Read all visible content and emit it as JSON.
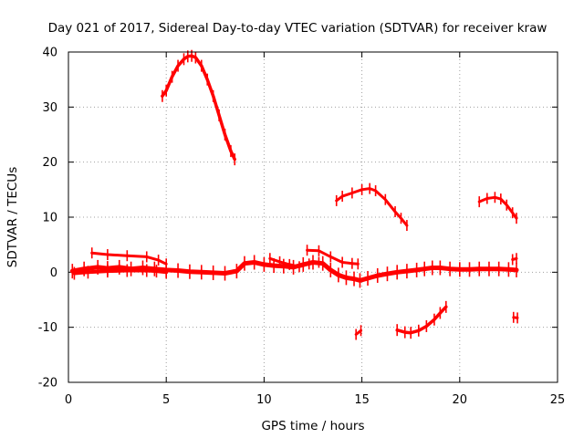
{
  "chart_data": {
    "type": "scatter",
    "title": "Day 021 of 2017, Sidereal Day-to-day VTEC variation (SDTVAR) for receiver kraw",
    "xlabel": "GPS time / hours",
    "ylabel": "SDTVAR / TECUs",
    "xlim": [
      0,
      25
    ],
    "ylim": [
      -20,
      40
    ],
    "xticks": [
      0,
      5,
      10,
      15,
      20,
      25
    ],
    "yticks": [
      -20,
      -10,
      0,
      10,
      20,
      30,
      40
    ],
    "grid": true,
    "marker_color": "#ff0000",
    "series": [
      {
        "name": "arc-peak-morning",
        "thickness": 3.5,
        "x": [
          4.8,
          5.0,
          5.3,
          5.6,
          5.9,
          6.1,
          6.3,
          6.5,
          6.8,
          7.1,
          7.4,
          7.7,
          8.0,
          8.3,
          8.5
        ],
        "y": [
          32,
          33,
          35.5,
          37.5,
          38.7,
          39.2,
          39.3,
          39.0,
          37.5,
          35,
          32,
          28.5,
          25,
          22,
          20.5
        ]
      },
      {
        "name": "arc-midday",
        "thickness": 3,
        "x": [
          13.7,
          14.0,
          14.5,
          15.0,
          15.4,
          15.7,
          16.2,
          16.7,
          17.0,
          17.3
        ],
        "y": [
          13,
          13.8,
          14.4,
          15,
          15.2,
          14.8,
          13.2,
          11,
          9.8,
          8.5
        ]
      },
      {
        "name": "arc-evening",
        "thickness": 3,
        "x": [
          21.0,
          21.4,
          21.8,
          22.1,
          22.4,
          22.7,
          22.9
        ],
        "y": [
          12.8,
          13.4,
          13.6,
          13.3,
          12.2,
          10.8,
          9.8
        ]
      },
      {
        "name": "band-upper",
        "thickness": 3,
        "x": [
          1.2,
          2.0,
          3.0,
          4.0,
          4.6,
          5.0
        ],
        "y": [
          3.5,
          3.2,
          3.0,
          2.8,
          2.2,
          1.5
        ]
      },
      {
        "name": "band-upper-midday",
        "thickness": 3,
        "x": [
          12.2,
          12.8,
          13.4,
          14.0,
          14.5,
          14.8
        ],
        "y": [
          4.0,
          3.9,
          2.8,
          1.8,
          1.6,
          1.5
        ]
      },
      {
        "name": "band-main",
        "thickness": 5,
        "x": [
          0.2,
          0.8,
          1.5,
          2.0,
          2.6,
          3.2,
          3.8,
          4.4,
          5.0,
          5.6,
          6.2,
          6.8,
          7.4,
          8.0,
          8.6,
          9.0,
          9.5,
          10.0,
          10.5,
          11.0,
          11.5,
          12.0,
          12.5,
          13.0,
          13.4,
          13.8,
          14.2,
          14.6,
          14.9,
          15.3,
          15.8,
          16.3,
          16.8,
          17.3,
          17.8,
          18.2,
          18.6,
          19.0,
          19.5,
          20.0,
          20.5,
          21.0,
          21.5,
          22.0,
          22.5,
          22.9
        ],
        "y": [
          0.2,
          0.6,
          0.9,
          0.7,
          0.9,
          0.6,
          0.8,
          0.6,
          0.4,
          0.3,
          0.1,
          0.0,
          -0.1,
          -0.2,
          0.2,
          1.6,
          1.8,
          1.4,
          1.2,
          1.1,
          0.9,
          1.4,
          1.8,
          1.6,
          0.4,
          -0.5,
          -1.0,
          -1.2,
          -1.5,
          -1.1,
          -0.6,
          -0.3,
          0.0,
          0.2,
          0.4,
          0.6,
          0.8,
          0.8,
          0.6,
          0.5,
          0.5,
          0.6,
          0.6,
          0.6,
          0.5,
          0.4
        ]
      },
      {
        "name": "band-lower",
        "thickness": 4,
        "x": [
          0.3,
          1.0,
          2.0,
          3.0,
          4.0,
          4.5,
          5.0
        ],
        "y": [
          -0.2,
          0.0,
          0.2,
          0.3,
          0.3,
          0.2,
          0.0
        ]
      },
      {
        "name": "band-secondary",
        "thickness": 3,
        "x": [
          10.3,
          10.8,
          11.3,
          11.8,
          12.3,
          12.8
        ],
        "y": [
          2.5,
          1.9,
          1.4,
          1.0,
          1.5,
          1.8
        ]
      },
      {
        "name": "arc-negative",
        "thickness": 3.5,
        "x": [
          16.8,
          17.2,
          17.5,
          17.9,
          18.3,
          18.7,
          19.0,
          19.3
        ],
        "y": [
          -10.5,
          -10.9,
          -11.0,
          -10.6,
          -9.8,
          -8.6,
          -7.4,
          -6.3
        ]
      },
      {
        "name": "fragment-negative",
        "thickness": 3,
        "x": [
          14.7,
          14.95
        ],
        "y": [
          -11.3,
          -10.6
        ]
      },
      {
        "name": "fragment-end-upper",
        "thickness": 3,
        "x": [
          22.7,
          22.9
        ],
        "y": [
          2.3,
          2.5
        ]
      },
      {
        "name": "fragment-end-negative",
        "thickness": 3,
        "x": [
          22.75,
          22.95
        ],
        "y": [
          -8.2,
          -8.3
        ]
      }
    ]
  }
}
